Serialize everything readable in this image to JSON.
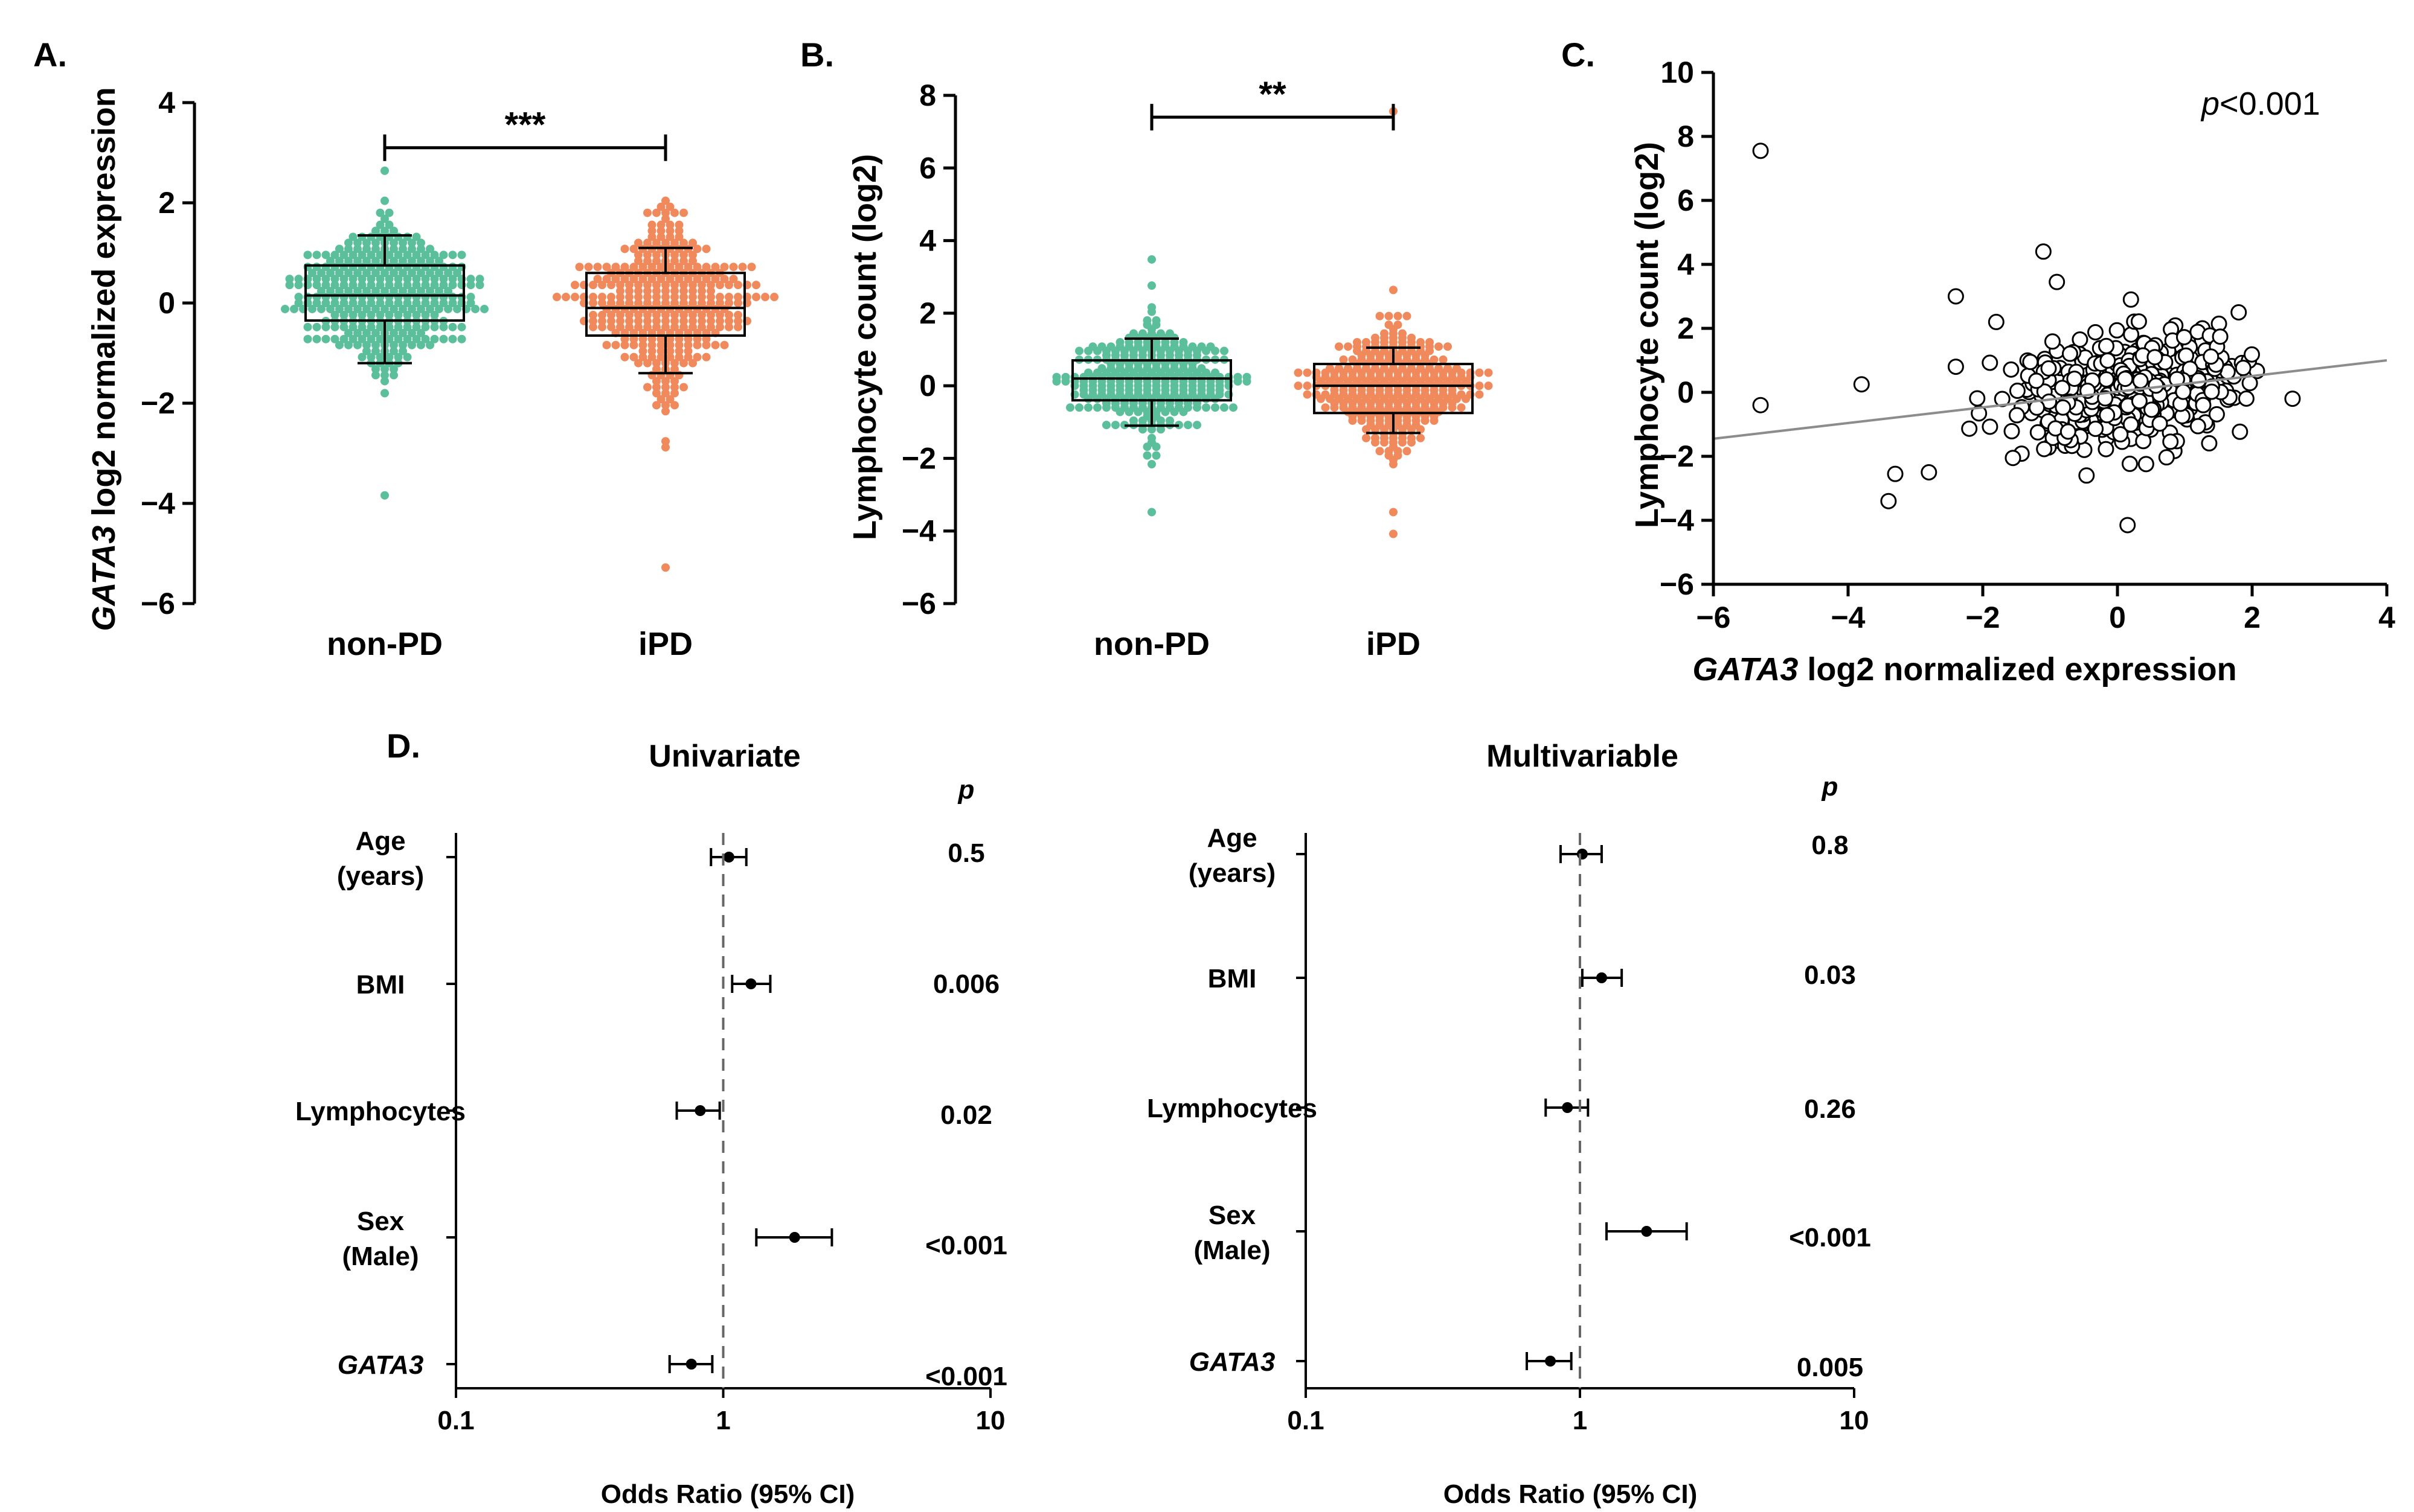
{
  "panels": {
    "a": "A.",
    "b": "B.",
    "c": "C.",
    "d": "D."
  },
  "colors": {
    "non_pd": "#5bbf9b",
    "ipd": "#f08a5d",
    "axis": "#000000",
    "fit": "#8c8c8c"
  },
  "chart_data": [
    {
      "id": "A",
      "type": "box",
      "ylabel_italic": "GATA3",
      "ylabel": "log2 normalized expression",
      "categories": [
        "non-PD",
        "iPD"
      ],
      "ylim": [
        -6,
        4
      ],
      "yticks": [
        "4",
        "2",
        "0",
        "−2",
        "−4",
        "−6"
      ],
      "yticks_num": [
        4,
        2,
        0,
        -2,
        -4,
        -6
      ],
      "boxes": [
        {
          "name": "non-PD",
          "q1": -0.35,
          "median": 0.15,
          "q3": 0.75,
          "whisker_low": -1.2,
          "whisker_high": 1.35
        },
        {
          "name": "iPD",
          "q1": -0.65,
          "median": -0.1,
          "q3": 0.6,
          "whisker_low": -1.4,
          "whisker_high": 1.1
        }
      ],
      "swarm": [
        {
          "center": 0.15,
          "sd": 0.75,
          "min": -3.8,
          "max": 2.65,
          "n": 330
        },
        {
          "center": -0.05,
          "sd": 0.8,
          "min": -5.3,
          "max": 2.0,
          "n": 330
        }
      ],
      "significance": "***",
      "sig_y": 3.1
    },
    {
      "id": "B",
      "type": "box",
      "ylabel": "Lymphocyte count (log2)",
      "categories": [
        "non-PD",
        "iPD"
      ],
      "ylim": [
        -6,
        8
      ],
      "yticks": [
        "8",
        "6",
        "4",
        "2",
        "0",
        "−2",
        "−4",
        "−6"
      ],
      "yticks_num": [
        8,
        6,
        4,
        2,
        0,
        -2,
        -4,
        -6
      ],
      "boxes": [
        {
          "name": "non-PD",
          "q1": -0.4,
          "median": 0.2,
          "q3": 0.7,
          "whisker_low": -1.1,
          "whisker_high": 1.3
        },
        {
          "name": "iPD",
          "q1": -0.75,
          "median": 0.0,
          "q3": 0.6,
          "whisker_low": -1.3,
          "whisker_high": 1.05
        }
      ],
      "swarm": [
        {
          "center": 0.15,
          "sd": 0.8,
          "min": -3.5,
          "max": 3.5,
          "n": 300
        },
        {
          "center": -0.05,
          "sd": 0.85,
          "min": -4.1,
          "max": 7.6,
          "n": 320
        }
      ],
      "significance": "**",
      "sig_y": 7.4
    },
    {
      "id": "C",
      "type": "scatter",
      "xlabel_italic": "GATA3",
      "xlabel": "log2 normalized expression",
      "ylabel": "Lymphocyte count (log2)",
      "xlim": [
        -6,
        4
      ],
      "ylim": [
        -6,
        10
      ],
      "xticks": [
        "−6",
        "−4",
        "−2",
        "0",
        "2",
        "4"
      ],
      "xticks_num": [
        -6,
        -4,
        -2,
        0,
        2,
        4
      ],
      "yticks": [
        "10",
        "8",
        "6",
        "4",
        "2",
        "0",
        "−2",
        "−4",
        "−6"
      ],
      "yticks_num": [
        10,
        8,
        6,
        4,
        2,
        0,
        -2,
        -4,
        -6
      ],
      "annotation_italic": "p",
      "annotation": "<0.001",
      "fit_line": {
        "x0": -6,
        "y0": -1.45,
        "x1": 4,
        "y1": 1.0
      },
      "outliers": [
        [
          -5.3,
          7.55
        ],
        [
          -5.3,
          -0.4
        ],
        [
          -3.8,
          0.25
        ],
        [
          -2.4,
          3.0
        ],
        [
          -1.1,
          4.4
        ],
        [
          -0.9,
          3.45
        ],
        [
          -3.4,
          -3.4
        ],
        [
          -3.3,
          -2.55
        ],
        [
          -2.8,
          -2.5
        ],
        [
          0.15,
          -4.15
        ],
        [
          2.6,
          -0.2
        ],
        [
          0.2,
          2.9
        ],
        [
          -1.8,
          2.2
        ],
        [
          -2.4,
          0.8
        ],
        [
          1.8,
          2.5
        ]
      ],
      "cloud": {
        "center_x": 0.2,
        "center_y": 0.1,
        "sd_x": 0.8,
        "sd_y": 0.8,
        "n": 470,
        "x_range": [
          -2.2,
          2.1
        ],
        "y_range": [
          -2.6,
          2.6
        ]
      }
    },
    {
      "id": "D1",
      "type": "forest",
      "title": "Univariate",
      "p_header": "p",
      "xlabel": "Odds Ratio (95% CI)",
      "xscale": "log",
      "xlim": [
        0.1,
        10
      ],
      "xticks": [
        "0.1",
        "1",
        "10"
      ],
      "xticks_num": [
        0.1,
        1,
        10
      ],
      "rows": [
        {
          "label": [
            "Age",
            "(years)"
          ],
          "or": 1.05,
          "lo": 0.9,
          "hi": 1.22,
          "p": "0.5"
        },
        {
          "label": [
            "BMI"
          ],
          "or": 1.27,
          "lo": 1.08,
          "hi": 1.5,
          "p": "0.006"
        },
        {
          "label": [
            "Lymphocytes"
          ],
          "or": 0.82,
          "lo": 0.67,
          "hi": 0.97,
          "p": "0.02"
        },
        {
          "label": [
            "Sex",
            "(Male)"
          ],
          "or": 1.85,
          "lo": 1.33,
          "hi": 2.55,
          "p": "<0.001"
        },
        {
          "label": [
            "GATA3"
          ],
          "italic": true,
          "or": 0.76,
          "lo": 0.63,
          "hi": 0.91,
          "p": "<0.001"
        }
      ]
    },
    {
      "id": "D2",
      "type": "forest",
      "title": "Multivariable",
      "p_header": "p",
      "xlabel": "Odds Ratio (95% CI)",
      "xscale": "log",
      "xlim": [
        0.1,
        10
      ],
      "xticks": [
        "0.1",
        "1",
        "10"
      ],
      "xticks_num": [
        0.1,
        1,
        10
      ],
      "rows": [
        {
          "label": [
            "Age",
            "(years)"
          ],
          "or": 1.02,
          "lo": 0.85,
          "hi": 1.2,
          "p": "0.8"
        },
        {
          "label": [
            "BMI"
          ],
          "or": 1.2,
          "lo": 1.02,
          "hi": 1.42,
          "p": "0.03"
        },
        {
          "label": [
            "Lymphocytes"
          ],
          "or": 0.9,
          "lo": 0.75,
          "hi": 1.07,
          "p": "0.26"
        },
        {
          "label": [
            "Sex",
            "(Male)"
          ],
          "or": 1.75,
          "lo": 1.25,
          "hi": 2.45,
          "p": "<0.001"
        },
        {
          "label": [
            "GATA3"
          ],
          "italic": true,
          "or": 0.78,
          "lo": 0.64,
          "hi": 0.93,
          "p": "0.005"
        }
      ]
    }
  ]
}
